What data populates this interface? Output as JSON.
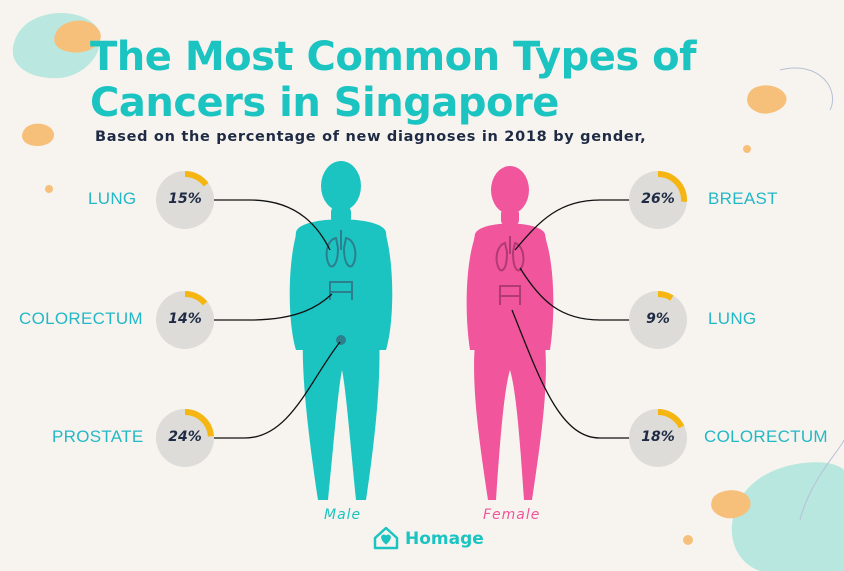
{
  "header": {
    "title_line1": "The Most Common Types of",
    "title_line2": "Cancers in Singapore",
    "subtitle": "Based on the percentage of new diagnoses in 2018 by gender,"
  },
  "figures": {
    "male_label": "Male",
    "female_label": "Female"
  },
  "brand": {
    "name": "Homage"
  },
  "colors": {
    "teal": "#1cc4c1",
    "pink": "#f1559c",
    "ring_progress": "#f5b612",
    "ring_track": "#dedcd9",
    "text_dark": "#1f2b44"
  },
  "chart_data": {
    "type": "table",
    "title": "The Most Common Types of Cancers in Singapore",
    "unit": "%",
    "series": [
      {
        "name": "Male",
        "categories": [
          "LUNG",
          "COLORECTUM",
          "PROSTATE"
        ],
        "values": [
          15,
          14,
          24
        ],
        "labels": [
          "15%",
          "14%",
          "24%"
        ]
      },
      {
        "name": "Female",
        "categories": [
          "BREAST",
          "LUNG",
          "COLORECTUM"
        ],
        "values": [
          26,
          9,
          18
        ],
        "labels": [
          "26%",
          "9%",
          "18%"
        ]
      }
    ]
  }
}
